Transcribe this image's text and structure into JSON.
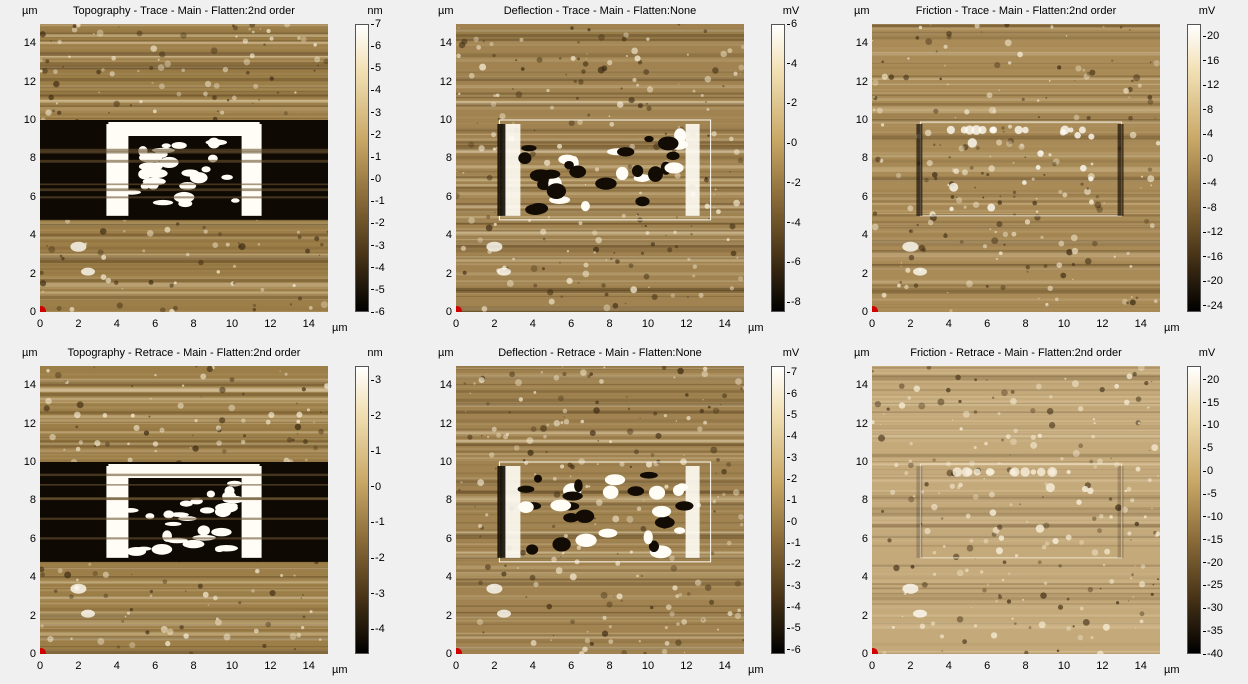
{
  "units": {
    "length": "µm"
  },
  "colors": {
    "dark": "#1a1105",
    "mid": "#8c6d3a",
    "light": "#fff8e8",
    "marker": "#d00000"
  },
  "panels": [
    {
      "title": "Topography  -  Trace  -  Main  -  Flatten:2nd order",
      "cbar_unit": "nm",
      "cbar_ticks": [
        "7",
        "6",
        "5",
        "4",
        "3",
        "2",
        "1",
        "0",
        "-1",
        "-2",
        "-3",
        "-4",
        "-5",
        "-6"
      ],
      "cbar_range": [
        -6,
        7
      ],
      "kind": "topo"
    },
    {
      "title": "Deflection  -  Trace  -  Main  -  Flatten:None",
      "cbar_unit": "mV",
      "cbar_ticks": [
        "6",
        "4",
        "2",
        "0",
        "-2",
        "-4",
        "-6",
        "-8"
      ],
      "cbar_range": [
        -8.5,
        6
      ],
      "kind": "defl"
    },
    {
      "title": "Friction  -  Trace  -  Main  -  Flatten:2nd order",
      "cbar_unit": "mV",
      "cbar_ticks": [
        "20",
        "16",
        "12",
        "8",
        "4",
        "0",
        "-4",
        "-8",
        "-12",
        "-16",
        "-20",
        "-24"
      ],
      "cbar_range": [
        -25,
        22
      ],
      "kind": "fric"
    },
    {
      "title": "Topography  -  Retrace  -  Main  -  Flatten:2nd order",
      "cbar_unit": "nm",
      "cbar_ticks": [
        "3",
        "2",
        "1",
        "0",
        "-1",
        "-2",
        "-3",
        "-4"
      ],
      "cbar_range": [
        -4.7,
        3.4
      ],
      "kind": "topo"
    },
    {
      "title": "Deflection  -  Retrace  -  Main  -  Flatten:None",
      "cbar_unit": "mV",
      "cbar_ticks": [
        "7",
        "6",
        "5",
        "4",
        "3",
        "2",
        "1",
        "0",
        "-1",
        "-2",
        "-3",
        "-4",
        "-5",
        "-6"
      ],
      "cbar_range": [
        -6.2,
        7.3
      ],
      "kind": "defl"
    },
    {
      "title": "Friction  -  Retrace  -  Main  -  Flatten:2nd order",
      "cbar_unit": "mV",
      "cbar_ticks": [
        "20",
        "15",
        "10",
        "5",
        "0",
        "-5",
        "-10",
        "-15",
        "-20",
        "-25",
        "-30",
        "-35",
        "-40"
      ],
      "cbar_range": [
        -40,
        23
      ],
      "kind": "fric2"
    }
  ],
  "axis": {
    "y_ticks": [
      "14",
      "12",
      "10",
      "8",
      "6",
      "4",
      "2",
      "0"
    ],
    "x_ticks": [
      "0",
      "2",
      "4",
      "6",
      "8",
      "10",
      "12",
      "14"
    ],
    "range": [
      0,
      15
    ]
  }
}
